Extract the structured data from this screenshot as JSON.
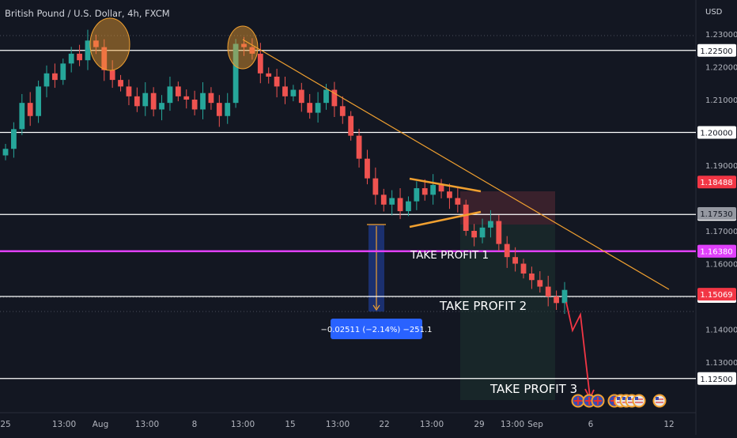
{
  "header": {
    "symbol_title": "British Pound / U.S. Dollar, 4h, FXCM"
  },
  "price_axis": {
    "currency_label": "USD",
    "ticks": [
      "1.23000",
      "1.22000",
      "1.21000",
      "1.19000",
      "1.17000",
      "1.16000",
      "1.14000",
      "1.13000"
    ]
  },
  "time_axis": {
    "labels": [
      "25",
      "13:00",
      "Aug",
      "13:00",
      "8",
      "13:00",
      "15",
      "13:00",
      "22",
      "13:00",
      "29",
      "13:00",
      "Sep",
      "6",
      "12"
    ]
  },
  "chart_data": {
    "type": "candlestick",
    "title": "British Pound / U.S. Dollar, 4h, FXCM",
    "y_unit": "USD",
    "ylim": [
      1.1175,
      1.2375
    ],
    "x_period": "2022-07-25 to 2022-09-13",
    "series_close_approx": [
      1.195,
      1.201,
      1.209,
      1.205,
      1.214,
      1.218,
      1.216,
      1.221,
      1.224,
      1.222,
      1.228,
      1.226,
      1.219,
      1.216,
      1.214,
      1.211,
      1.208,
      1.212,
      1.207,
      1.209,
      1.214,
      1.211,
      1.21,
      1.207,
      1.212,
      1.209,
      1.205,
      1.209,
      1.227,
      1.226,
      1.224,
      1.218,
      1.217,
      1.214,
      1.211,
      1.213,
      1.209,
      1.206,
      1.209,
      1.213,
      1.208,
      1.205,
      1.199,
      1.192,
      1.186,
      1.181,
      1.178,
      1.18,
      1.176,
      1.179,
      1.183,
      1.181,
      1.184,
      1.182,
      1.18,
      1.178,
      1.17,
      1.168,
      1.171,
      1.173,
      1.166,
      1.162,
      1.16,
      1.157,
      1.155,
      1.153,
      1.15,
      1.148,
      1.152
    ],
    "horizontal_levels": [
      {
        "price": "1.22500",
        "color": "#ffffff",
        "style": "solid"
      },
      {
        "price": "1.20000",
        "color": "#ffffff",
        "style": "solid"
      },
      {
        "price": "1.17500",
        "color": "#ffffff",
        "style": "solid"
      },
      {
        "price": "1.16380",
        "color": "#e040fb",
        "style": "solid"
      },
      {
        "price": "1.15000",
        "color": "#ffffff",
        "style": "solid"
      },
      {
        "price": "1.12500",
        "color": "#ffffff",
        "style": "solid"
      }
    ],
    "price_tags": [
      {
        "label": "1.18488",
        "bg": "#f23645",
        "fg": "#ffffff"
      },
      {
        "label": "1.17530",
        "bg": "#9598a1",
        "fg": "#131722"
      },
      {
        "label": "1.16380",
        "bg": "#e040fb",
        "fg": "#ffffff"
      },
      {
        "label": "1.15069",
        "bg": "#f23645",
        "fg": "#ffffff"
      }
    ],
    "annotations": {
      "take_profit_1": "TAKE PROFIT 1",
      "take_profit_2": "TAKE PROFIT 2",
      "take_profit_3": "TAKE PROFIT 3",
      "measure_label": "−0.02511 (−2.14%) −251.1"
    },
    "trendline_color": "#f0a030",
    "projection_color": "#f23645",
    "up_color": "#26a69a",
    "down_color": "#ef5350"
  }
}
